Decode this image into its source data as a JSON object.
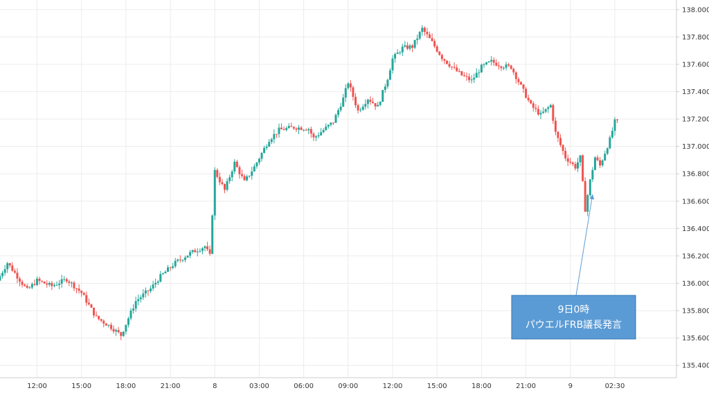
{
  "chart_data": {
    "type": "candlestick",
    "x_tick_labels": [
      "12:00",
      "15:00",
      "18:00",
      "21:00",
      "8",
      "03:00",
      "06:00",
      "09:00",
      "12:00",
      "15:00",
      "18:00",
      "21:00",
      "9",
      "02:30"
    ],
    "y_tick_labels": [
      "135.400",
      "135.600",
      "135.800",
      "136.000",
      "136.200",
      "136.400",
      "136.600",
      "136.800",
      "137.000",
      "137.200",
      "137.400",
      "137.600",
      "137.800",
      "138.000"
    ],
    "ylim": [
      135.31,
      138.07
    ],
    "xlim": [
      0,
      136
    ],
    "x_ticks_at": [
      7.5,
      16.5,
      25.5,
      34.5,
      43.5,
      52.5,
      61.5,
      70.5,
      79.5,
      88.5,
      97.5,
      106.5,
      115.5,
      124.5
    ],
    "grid": true,
    "colors": {
      "up": "#26a69a",
      "down": "#ef5350",
      "grid": "#ececec",
      "axis": "#cccccc",
      "callout_bg": "#5b9bd5",
      "callout_border": "#2e75b6",
      "arrow": "#5b9bd5"
    },
    "anchors": [
      [
        0,
        136.02
      ],
      [
        2,
        136.15
      ],
      [
        6,
        135.95
      ],
      [
        8,
        136.02
      ],
      [
        11,
        135.98
      ],
      [
        14,
        136.03
      ],
      [
        17,
        135.93
      ],
      [
        20,
        135.75
      ],
      [
        23,
        135.68
      ],
      [
        25,
        135.62
      ],
      [
        28,
        135.87
      ],
      [
        31,
        135.96
      ],
      [
        33,
        136.05
      ],
      [
        36,
        136.15
      ],
      [
        39,
        136.22
      ],
      [
        42,
        136.27
      ],
      [
        43,
        136.2
      ],
      [
        44,
        136.82
      ],
      [
        46,
        136.68
      ],
      [
        48,
        136.88
      ],
      [
        50,
        136.74
      ],
      [
        52,
        136.85
      ],
      [
        55,
        137.05
      ],
      [
        57,
        137.12
      ],
      [
        60,
        137.14
      ],
      [
        63,
        137.13
      ],
      [
        64,
        137.06
      ],
      [
        66,
        137.12
      ],
      [
        68,
        137.18
      ],
      [
        70,
        137.35
      ],
      [
        71,
        137.47
      ],
      [
        73,
        137.26
      ],
      [
        75,
        137.35
      ],
      [
        77,
        137.29
      ],
      [
        79,
        137.5
      ],
      [
        80,
        137.64
      ],
      [
        82,
        137.72
      ],
      [
        84,
        137.73
      ],
      [
        86,
        137.86
      ],
      [
        88,
        137.76
      ],
      [
        90,
        137.65
      ],
      [
        92,
        137.58
      ],
      [
        94,
        137.52
      ],
      [
        96,
        137.48
      ],
      [
        98,
        137.58
      ],
      [
        100,
        137.62
      ],
      [
        102,
        137.59
      ],
      [
        104,
        137.58
      ],
      [
        106,
        137.44
      ],
      [
        108,
        137.3
      ],
      [
        110,
        137.23
      ],
      [
        112,
        137.3
      ],
      [
        113,
        137.1
      ],
      [
        115,
        136.92
      ],
      [
        117,
        136.85
      ],
      [
        118,
        136.92
      ],
      [
        119,
        136.54
      ],
      [
        120,
        136.75
      ],
      [
        121,
        136.92
      ],
      [
        122,
        136.86
      ],
      [
        124,
        137.05
      ],
      [
        125,
        137.18
      ]
    ],
    "annotation": {
      "lines": [
        "9日0時",
        "パウエルFRB議長発言"
      ],
      "arrow_to_x": 120,
      "arrow_to_y": 136.65
    }
  }
}
